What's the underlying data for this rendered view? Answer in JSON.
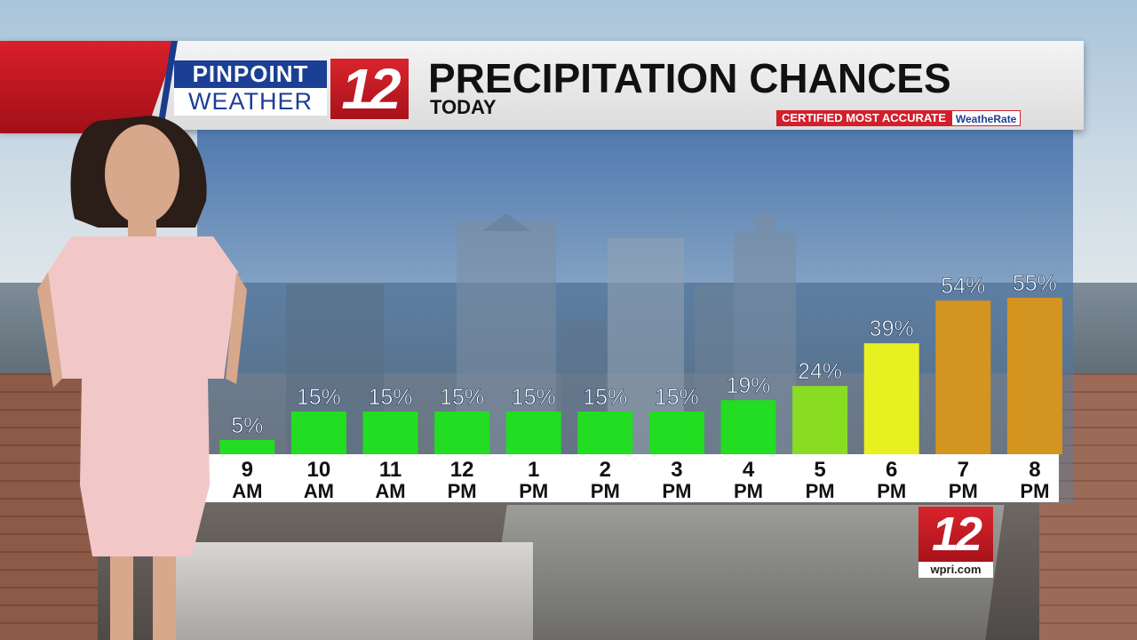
{
  "header": {
    "logo_line1": "PINPOINT",
    "logo_line2": "WEATHER",
    "logo_number": "12",
    "title": "PRECIPITATION CHANCES",
    "subtitle": "TODAY",
    "certified_text": "CERTIFIED MOST ACCURATE",
    "certified_brand": "WeatheRate"
  },
  "footer": {
    "logo_number": "12",
    "logo_url": "wpri.com"
  },
  "colors": {
    "low": "#22dd22",
    "mid": "#88dd22",
    "elevated": "#e8f020",
    "high": "#d49420",
    "brand_red": "#d21f2b",
    "brand_blue": "#1b3f94"
  },
  "chart_data": {
    "type": "bar",
    "title": "PRECIPITATION CHANCES",
    "subtitle": "TODAY",
    "categories": [
      [
        "9",
        "AM"
      ],
      [
        "10",
        "AM"
      ],
      [
        "11",
        "AM"
      ],
      [
        "12",
        "PM"
      ],
      [
        "1",
        "PM"
      ],
      [
        "2",
        "PM"
      ],
      [
        "3",
        "PM"
      ],
      [
        "4",
        "PM"
      ],
      [
        "5",
        "PM"
      ],
      [
        "6",
        "PM"
      ],
      [
        "7",
        "PM"
      ],
      [
        "8",
        "PM"
      ]
    ],
    "values": [
      5,
      15,
      15,
      15,
      15,
      15,
      15,
      19,
      24,
      39,
      54,
      55
    ],
    "value_suffix": "%",
    "bar_colors": [
      "#22dd22",
      "#22dd22",
      "#22dd22",
      "#22dd22",
      "#22dd22",
      "#22dd22",
      "#22dd22",
      "#22dd22",
      "#88dd22",
      "#e8f020",
      "#d49420",
      "#d49420"
    ],
    "ylim": [
      0,
      60
    ],
    "grid": false,
    "legend": "none"
  }
}
